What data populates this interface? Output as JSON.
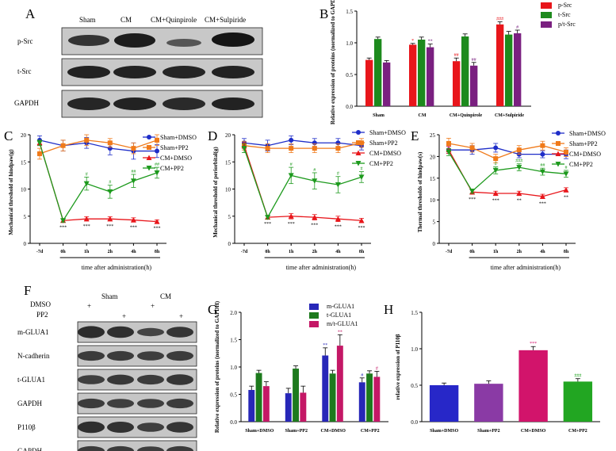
{
  "panels": {
    "A": {
      "letter": "A",
      "lanes": [
        "Sham",
        "CM",
        "CM+Quinpirole",
        "CM+Sulpiride"
      ],
      "rows": [
        "p-Src",
        "t-Src",
        "GAPDH"
      ]
    },
    "F": {
      "letter": "F",
      "dmso_label": "DMSO",
      "pp2_label": "PP2",
      "group_sham": "Sham",
      "group_cm": "CM",
      "dmso_marks": [
        "+",
        "",
        "+",
        ""
      ],
      "pp2_marks": [
        "",
        "+",
        "",
        "+"
      ],
      "rows": [
        "m-GLUA1",
        "N-cadherin",
        "t-GLUA1",
        "GAPDH",
        "P110β",
        "GAPDH"
      ]
    }
  },
  "chart_data": [
    {
      "id": "B",
      "letter": "B",
      "type": "bar",
      "categories": [
        "Sham",
        "CM",
        "CM+Quinpirole",
        "CM+Sulpiride"
      ],
      "series": [
        {
          "name": "p-Src",
          "color": "#e8161b",
          "values": [
            0.73,
            0.97,
            0.71,
            1.29
          ],
          "err": [
            0.03,
            0.02,
            0.05,
            0.04
          ],
          "sig": [
            "",
            "*",
            "##",
            "###"
          ]
        },
        {
          "name": "t-Src",
          "color": "#1d8a1d",
          "values": [
            1.06,
            1.05,
            1.1,
            1.13
          ],
          "err": [
            0.03,
            0.04,
            0.04,
            0.05
          ],
          "sig": [
            "",
            "",
            "",
            ""
          ]
        },
        {
          "name": "p/t-Src",
          "color": "#7a2080",
          "values": [
            0.69,
            0.93,
            0.64,
            1.15
          ],
          "err": [
            0.03,
            0.05,
            0.05,
            0.05
          ],
          "sig": [
            "",
            "**",
            "##",
            "#"
          ]
        }
      ],
      "ylabel": "Relative expression of proteins (normalized to GAPDH)",
      "ylim": [
        0,
        1.5
      ],
      "yticks": [
        "0.0",
        "0.5",
        "1.0",
        "1.5"
      ]
    },
    {
      "id": "C",
      "letter": "C",
      "type": "line",
      "x": [
        "-7d",
        "0h",
        "1h",
        "2h",
        "4h",
        "8h"
      ],
      "series": [
        {
          "name": "Sham+DMSO",
          "color": "#1e2dc8",
          "marker": "circle",
          "values": [
            19,
            18,
            18.5,
            17.5,
            17,
            17
          ],
          "err": [
            0.8,
            1.0,
            1.0,
            1.2,
            1.5,
            1.2
          ]
        },
        {
          "name": "Sham+PP2",
          "color": "#f07a1a",
          "marker": "square",
          "values": [
            16.5,
            18,
            19,
            18.5,
            17.5,
            19
          ],
          "err": [
            1.0,
            1.0,
            1.0,
            0.8,
            1.0,
            1.0
          ]
        },
        {
          "name": "CM+DMSO",
          "color": "#e8161b",
          "marker": "triangle",
          "values": [
            18.5,
            4.2,
            4.5,
            4.5,
            4.3,
            4.0
          ],
          "err": [
            0.5,
            0.3,
            0.4,
            0.4,
            0.4,
            0.3
          ]
        },
        {
          "name": "CM+PP2",
          "color": "#1d9a1d",
          "marker": "triangle-down",
          "values": [
            18.5,
            4.2,
            11,
            9.5,
            11.5,
            13
          ],
          "err": [
            0.5,
            0.3,
            1.2,
            1.2,
            1.2,
            1.0
          ]
        }
      ],
      "star_labels": [
        "",
        "***",
        "***",
        "***",
        "***",
        "***"
      ],
      "hash_labels": [
        "",
        "",
        "#",
        "#",
        "##",
        "##"
      ],
      "xlabel": "time after administration(h)",
      "ylabel": "Mechanical threshold of hindpaw(g)",
      "ylim": [
        0,
        20
      ],
      "yticks": [
        "0",
        "5",
        "10",
        "15",
        "20"
      ]
    },
    {
      "id": "D",
      "letter": "D",
      "type": "line",
      "x": [
        "-7d",
        "0h",
        "1h",
        "2h",
        "4h",
        "8h"
      ],
      "series": [
        {
          "name": "Sham+DMSO",
          "color": "#1e2dc8",
          "marker": "circle",
          "values": [
            18.5,
            18,
            19,
            18.5,
            18.5,
            18
          ],
          "err": [
            0.8,
            1.0,
            0.8,
            0.8,
            0.8,
            0.8
          ]
        },
        {
          "name": "Sham+PP2",
          "color": "#f07a1a",
          "marker": "square",
          "values": [
            18,
            17.5,
            17.5,
            17.5,
            17.5,
            18.5
          ],
          "err": [
            0.8,
            0.8,
            0.8,
            0.8,
            0.8,
            0.8
          ]
        },
        {
          "name": "CM+DMSO",
          "color": "#e8161b",
          "marker": "triangle",
          "values": [
            18,
            4.8,
            5.0,
            4.8,
            4.5,
            4.2
          ],
          "err": [
            0.5,
            0.3,
            0.5,
            0.5,
            0.5,
            0.4
          ]
        },
        {
          "name": "CM+PP2",
          "color": "#1d9a1d",
          "marker": "triangle-down",
          "values": [
            17.5,
            4.8,
            12.5,
            11.5,
            10.8,
            12.2
          ],
          "err": [
            0.8,
            0.3,
            1.5,
            1.5,
            1.5,
            1.0
          ]
        }
      ],
      "star_labels": [
        "",
        "***",
        "***",
        "***",
        "***",
        "***"
      ],
      "hash_labels": [
        "",
        "",
        "#",
        "#",
        "#",
        "#"
      ],
      "xlabel": "time after administration(h)",
      "ylabel": "Mechanical threshold of periorbital(g)",
      "ylim": [
        0,
        20
      ],
      "yticks": [
        "0",
        "5",
        "10",
        "15",
        "20"
      ]
    },
    {
      "id": "E",
      "letter": "E",
      "type": "line",
      "x": [
        "-7d",
        "0h",
        "1h",
        "2h",
        "4h",
        "8h"
      ],
      "series": [
        {
          "name": "Sham+DMSO",
          "color": "#1e2dc8",
          "marker": "circle",
          "values": [
            21.5,
            21.5,
            22,
            20.5,
            20.5,
            20.5
          ],
          "err": [
            0.8,
            1.0,
            1.0,
            0.8,
            0.8,
            1.0
          ]
        },
        {
          "name": "Sham+PP2",
          "color": "#f07a1a",
          "marker": "square",
          "values": [
            23,
            22,
            19.5,
            21.5,
            22.5,
            21
          ],
          "err": [
            1.2,
            1.0,
            1.0,
            1.0,
            1.0,
            1.0
          ]
        },
        {
          "name": "CM+DMSO",
          "color": "#e8161b",
          "marker": "triangle",
          "values": [
            21.5,
            11.8,
            11.5,
            11.5,
            10.8,
            12.3
          ],
          "err": [
            0.8,
            0.5,
            0.5,
            0.5,
            0.5,
            0.5
          ]
        },
        {
          "name": "CM+PP2",
          "color": "#1d9a1d",
          "marker": "triangle-down",
          "values": [
            21,
            12,
            16.8,
            17.5,
            16.5,
            16
          ],
          "err": [
            0.8,
            0.5,
            0.8,
            0.8,
            0.8,
            0.8
          ]
        }
      ],
      "star_labels": [
        "",
        "***",
        "***",
        "**",
        "***",
        "**"
      ],
      "hash_labels": [
        "",
        "",
        "#",
        "###",
        "##",
        "#"
      ],
      "xlabel": "time after administration(h)",
      "ylabel": "Thermal thresholds of hindpaw(s)",
      "ylim": [
        0,
        25
      ],
      "yticks": [
        "0",
        "5",
        "10",
        "15",
        "20",
        "25"
      ]
    },
    {
      "id": "G",
      "letter": "G",
      "type": "bar",
      "categories": [
        "Sham+DMSO",
        "Sham+PP2",
        "CM+DMSO",
        "CM+PP2"
      ],
      "series": [
        {
          "name": "m-GLUA1",
          "color": "#2727b8",
          "values": [
            0.58,
            0.52,
            1.21,
            0.72
          ],
          "err": [
            0.07,
            0.09,
            0.14,
            0.08
          ],
          "sig": [
            "",
            "",
            "**",
            "#"
          ]
        },
        {
          "name": "t-GLUA1",
          "color": "#1d7a1d",
          "values": [
            0.89,
            0.97,
            0.88,
            0.88
          ],
          "err": [
            0.05,
            0.05,
            0.06,
            0.05
          ],
          "sig": [
            "",
            "",
            "",
            ""
          ]
        },
        {
          "name": "m/t-GLUA1",
          "color": "#c41866",
          "values": [
            0.65,
            0.53,
            1.39,
            0.82
          ],
          "err": [
            0.08,
            0.12,
            0.2,
            0.1
          ],
          "sig": [
            "",
            "",
            "**",
            "#"
          ]
        }
      ],
      "ylabel": "Relative expression of proteins (normalized to GAPDH)",
      "ylim": [
        0,
        2.0
      ],
      "yticks": [
        "0.0",
        "0.5",
        "1.0",
        "1.5",
        "2.0"
      ]
    },
    {
      "id": "H",
      "letter": "H",
      "type": "bar",
      "categories": [
        "Sham+DMSO",
        "Sham+PP2",
        "CM+DMSO",
        "CM+PP2"
      ],
      "series": [
        {
          "name": "P110β",
          "colors": [
            "#2727c8",
            "#8a3aa5",
            "#d2146b",
            "#22a622"
          ],
          "values": [
            0.5,
            0.52,
            0.98,
            0.55
          ],
          "err": [
            0.03,
            0.04,
            0.05,
            0.04
          ],
          "sig": [
            "",
            "",
            "***",
            "###"
          ]
        }
      ],
      "ylabel": "relative expression of P110β",
      "ylim": [
        0,
        1.5
      ],
      "yticks": [
        "0.0",
        "0.5",
        "1.0",
        "1.5"
      ]
    }
  ]
}
